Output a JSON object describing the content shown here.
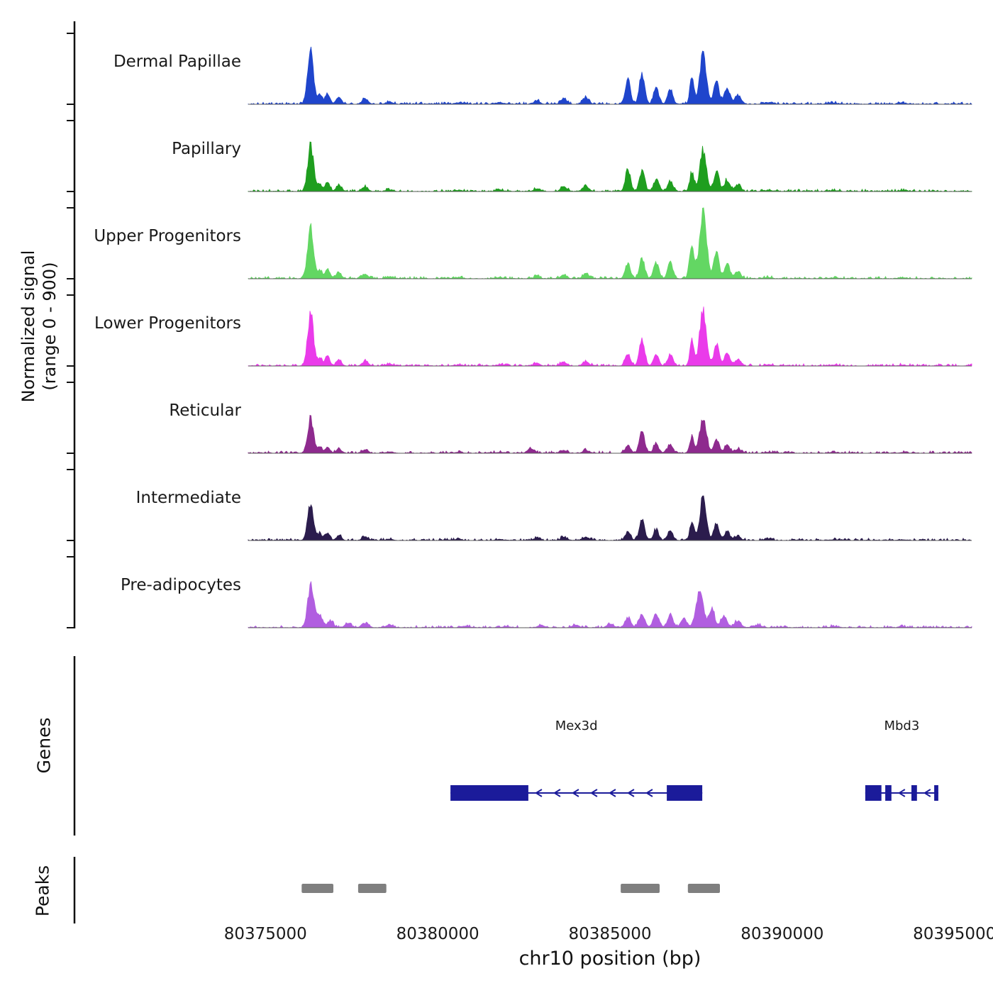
{
  "y_axis": {
    "label_line1": "Normalized signal",
    "label_line2": "(range 0 - 900)"
  },
  "sections": {
    "genes": "Genes",
    "peaks": "Peaks"
  },
  "x_axis": {
    "title": "chr10 position (bp)",
    "tick_labels": [
      "80375000",
      "80380000",
      "80385000",
      "80390000",
      "80395000"
    ]
  },
  "chart_data": {
    "type": "area",
    "title": "",
    "xlabel": "chr10 position (bp)",
    "ylabel": "Normalized signal (range 0 - 900)",
    "x_domain_bp": [
      80374500,
      80395500
    ],
    "x_ticks_bp": [
      80375000,
      80380000,
      80385000,
      80390000,
      80395000
    ],
    "y_range": [
      0,
      900
    ],
    "grid": false,
    "legend": false,
    "tracks": [
      {
        "name": "Dermal Papillae",
        "color": "#1f45cc",
        "peaks": [
          [
            80376310,
            85,
            650
          ],
          [
            80376580,
            60,
            115
          ],
          [
            80376800,
            70,
            130
          ],
          [
            80377130,
            75,
            90
          ],
          [
            80377890,
            85,
            70
          ],
          [
            80378600,
            100,
            25
          ],
          [
            80380600,
            110,
            18
          ],
          [
            80381800,
            110,
            18
          ],
          [
            80382880,
            85,
            45
          ],
          [
            80383660,
            85,
            70
          ],
          [
            80384300,
            85,
            85
          ],
          [
            80385520,
            75,
            300
          ],
          [
            80385930,
            75,
            390
          ],
          [
            80386340,
            75,
            210
          ],
          [
            80386750,
            75,
            175
          ],
          [
            80387380,
            60,
            320
          ],
          [
            80387700,
            95,
            620
          ],
          [
            80388090,
            75,
            300
          ],
          [
            80388400,
            80,
            200
          ],
          [
            80388710,
            85,
            110
          ],
          [
            80389600,
            110,
            22
          ],
          [
            80391500,
            120,
            14
          ],
          [
            80393500,
            120,
            12
          ]
        ]
      },
      {
        "name": "Papillary",
        "color": "#1f9e1f",
        "peaks": [
          [
            80376310,
            85,
            560
          ],
          [
            80376580,
            60,
            95
          ],
          [
            80376800,
            70,
            110
          ],
          [
            80377130,
            75,
            70
          ],
          [
            80377890,
            85,
            55
          ],
          [
            80378600,
            100,
            20
          ],
          [
            80380600,
            110,
            14
          ],
          [
            80381800,
            110,
            14
          ],
          [
            80382880,
            85,
            35
          ],
          [
            80383660,
            85,
            55
          ],
          [
            80384300,
            85,
            65
          ],
          [
            80385520,
            75,
            270
          ],
          [
            80385930,
            75,
            250
          ],
          [
            80386340,
            75,
            150
          ],
          [
            80386750,
            75,
            130
          ],
          [
            80387380,
            60,
            250
          ],
          [
            80387700,
            95,
            500
          ],
          [
            80388090,
            75,
            240
          ],
          [
            80388400,
            80,
            140
          ],
          [
            80388710,
            85,
            80
          ],
          [
            80389600,
            110,
            16
          ],
          [
            80391500,
            120,
            12
          ],
          [
            80393500,
            120,
            10
          ]
        ]
      },
      {
        "name": "Upper Progenitors",
        "color": "#63d763",
        "peaks": [
          [
            80376310,
            85,
            620
          ],
          [
            80376580,
            60,
            100
          ],
          [
            80376800,
            70,
            120
          ],
          [
            80377130,
            75,
            80
          ],
          [
            80377890,
            85,
            60
          ],
          [
            80378600,
            100,
            22
          ],
          [
            80380600,
            110,
            14
          ],
          [
            80381800,
            110,
            14
          ],
          [
            80382880,
            85,
            30
          ],
          [
            80383660,
            85,
            50
          ],
          [
            80384300,
            85,
            60
          ],
          [
            80385520,
            75,
            180
          ],
          [
            80385930,
            75,
            260
          ],
          [
            80386340,
            75,
            200
          ],
          [
            80386750,
            75,
            200
          ],
          [
            80387380,
            70,
            380
          ],
          [
            80387700,
            100,
            860
          ],
          [
            80388090,
            75,
            320
          ],
          [
            80388400,
            80,
            180
          ],
          [
            80388710,
            85,
            90
          ],
          [
            80389600,
            110,
            16
          ],
          [
            80391500,
            120,
            12
          ],
          [
            80393500,
            120,
            10
          ]
        ]
      },
      {
        "name": "Lower Progenitors",
        "color": "#ea3bea",
        "peaks": [
          [
            80376310,
            85,
            640
          ],
          [
            80376580,
            60,
            100
          ],
          [
            80376800,
            70,
            110
          ],
          [
            80377130,
            75,
            70
          ],
          [
            80377890,
            85,
            55
          ],
          [
            80378600,
            100,
            20
          ],
          [
            80380600,
            110,
            14
          ],
          [
            80381800,
            110,
            14
          ],
          [
            80382880,
            85,
            35
          ],
          [
            80383660,
            85,
            50
          ],
          [
            80384300,
            85,
            60
          ],
          [
            80385520,
            75,
            150
          ],
          [
            80385930,
            75,
            320
          ],
          [
            80386340,
            75,
            140
          ],
          [
            80386750,
            75,
            140
          ],
          [
            80387380,
            60,
            300
          ],
          [
            80387700,
            95,
            680
          ],
          [
            80388090,
            75,
            270
          ],
          [
            80388400,
            80,
            150
          ],
          [
            80388710,
            85,
            80
          ],
          [
            80389600,
            110,
            16
          ],
          [
            80391500,
            120,
            12
          ],
          [
            80393500,
            120,
            10
          ]
        ]
      },
      {
        "name": "Reticular",
        "color": "#8e2a8e",
        "peaks": [
          [
            80376310,
            85,
            420
          ],
          [
            80376580,
            60,
            70
          ],
          [
            80376800,
            70,
            80
          ],
          [
            80377130,
            75,
            50
          ],
          [
            80377890,
            85,
            40
          ],
          [
            80378600,
            100,
            15
          ],
          [
            80380600,
            110,
            12
          ],
          [
            80381800,
            110,
            12
          ],
          [
            80382700,
            90,
            55
          ],
          [
            80383660,
            85,
            35
          ],
          [
            80384300,
            85,
            35
          ],
          [
            80385520,
            75,
            100
          ],
          [
            80385930,
            75,
            280
          ],
          [
            80386340,
            75,
            110
          ],
          [
            80386750,
            75,
            110
          ],
          [
            80387380,
            60,
            200
          ],
          [
            80387700,
            95,
            430
          ],
          [
            80388090,
            75,
            180
          ],
          [
            80388400,
            80,
            100
          ],
          [
            80388710,
            85,
            50
          ],
          [
            80389600,
            110,
            12
          ],
          [
            80391500,
            120,
            10
          ],
          [
            80393500,
            120,
            8
          ]
        ]
      },
      {
        "name": "Intermediate",
        "color": "#2b1c4d",
        "peaks": [
          [
            80376310,
            85,
            470
          ],
          [
            80376580,
            60,
            80
          ],
          [
            80376800,
            70,
            85
          ],
          [
            80377130,
            75,
            55
          ],
          [
            80377890,
            85,
            45
          ],
          [
            80378600,
            100,
            15
          ],
          [
            80380600,
            110,
            12
          ],
          [
            80381800,
            110,
            12
          ],
          [
            80382880,
            85,
            30
          ],
          [
            80383660,
            85,
            40
          ],
          [
            80384300,
            85,
            45
          ],
          [
            80385520,
            75,
            110
          ],
          [
            80385930,
            75,
            270
          ],
          [
            80386340,
            75,
            130
          ],
          [
            80386750,
            75,
            120
          ],
          [
            80387380,
            60,
            230
          ],
          [
            80387700,
            95,
            500
          ],
          [
            80388090,
            75,
            200
          ],
          [
            80388400,
            80,
            110
          ],
          [
            80388710,
            85,
            55
          ],
          [
            80389600,
            110,
            12
          ],
          [
            80391500,
            120,
            10
          ],
          [
            80393500,
            120,
            8
          ]
        ]
      },
      {
        "name": "Pre-adipocytes",
        "color": "#b15ee0",
        "peaks": [
          [
            80376310,
            85,
            520
          ],
          [
            80376560,
            110,
            140
          ],
          [
            80376900,
            80,
            80
          ],
          [
            80377400,
            90,
            60
          ],
          [
            80377900,
            95,
            55
          ],
          [
            80378600,
            110,
            30
          ],
          [
            80380800,
            120,
            18
          ],
          [
            80382000,
            110,
            16
          ],
          [
            80383000,
            95,
            28
          ],
          [
            80384000,
            95,
            35
          ],
          [
            80385000,
            90,
            45
          ],
          [
            80385520,
            85,
            120
          ],
          [
            80385930,
            85,
            160
          ],
          [
            80386340,
            85,
            170
          ],
          [
            80386750,
            85,
            150
          ],
          [
            80387150,
            85,
            110
          ],
          [
            80387600,
            100,
            460
          ],
          [
            80387950,
            85,
            240
          ],
          [
            80388300,
            85,
            150
          ],
          [
            80388710,
            95,
            85
          ],
          [
            80389300,
            110,
            30
          ],
          [
            80391500,
            120,
            12
          ],
          [
            80393500,
            120,
            10
          ]
        ]
      }
    ],
    "genes": [
      {
        "name": "Mex3d",
        "strand": "-",
        "start_bp": 80380370,
        "end_bp": 80387680,
        "exons_bp": [
          [
            80380370,
            80382630
          ],
          [
            80386650,
            80387680
          ]
        ],
        "color": "#1b1b9a"
      },
      {
        "name": "Mbd3",
        "strand": "-",
        "start_bp": 80392410,
        "end_bp": 80394530,
        "exons_bp": [
          [
            80392410,
            80392880
          ],
          [
            80392990,
            80393170
          ],
          [
            80393750,
            80393910
          ],
          [
            80394410,
            80394530
          ]
        ],
        "color": "#1b1b9a"
      }
    ],
    "peak_calls": {
      "color": "#7f7f7f",
      "regions_bp": [
        [
          80376050,
          80376970
        ],
        [
          80377690,
          80378510
        ],
        [
          80385310,
          80386440
        ],
        [
          80387260,
          80388190
        ]
      ]
    }
  }
}
